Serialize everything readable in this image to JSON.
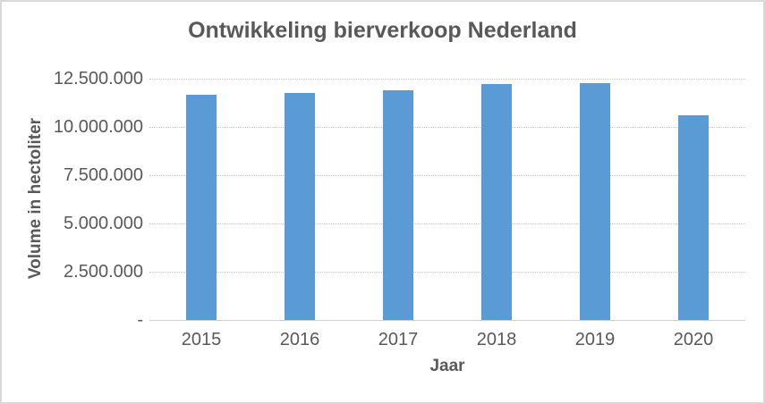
{
  "chart_data": {
    "type": "bar",
    "title": "Ontwikkeling bierverkoop Nederland",
    "xlabel": "Jaar",
    "ylabel": "Volume in hectoliter",
    "categories": [
      "2015",
      "2016",
      "2017",
      "2018",
      "2019",
      "2020"
    ],
    "values": [
      11650000,
      11750000,
      11900000,
      12200000,
      12250000,
      10600000
    ],
    "ylim": [
      0,
      12500000
    ],
    "ytick_interval": 2500000,
    "yticks": [
      {
        "value": 12500000,
        "label": "12.500.000"
      },
      {
        "value": 10000000,
        "label": "10.000.000"
      },
      {
        "value": 7500000,
        "label": "7.500.000"
      },
      {
        "value": 5000000,
        "label": "5.000.000"
      },
      {
        "value": 2500000,
        "label": "2.500.000"
      },
      {
        "value": 0,
        "label": "-"
      }
    ],
    "grid": true,
    "legend": false
  },
  "colors": {
    "bar": "#5B9BD5",
    "text": "#595959",
    "gridline": "#C9C9C9",
    "axis_line": "#D0D0D0",
    "border": "#D9D9D9",
    "background": "#FFFFFF"
  }
}
